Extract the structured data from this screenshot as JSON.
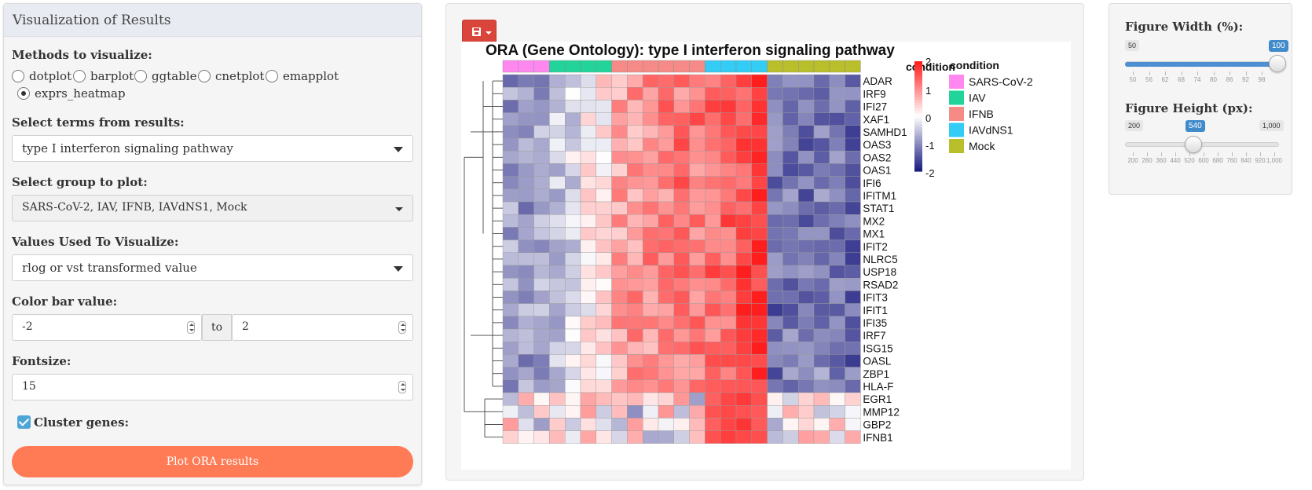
{
  "left_panel": {
    "title": "Visualization of Results",
    "methods_label": "Methods to visualize:",
    "methods": [
      {
        "label": "dotplot",
        "selected": false
      },
      {
        "label": "barplot",
        "selected": false
      },
      {
        "label": "ggtable",
        "selected": false
      },
      {
        "label": "cnetplot",
        "selected": false
      },
      {
        "label": "emapplot",
        "selected": false
      },
      {
        "label": "exprs_heatmap",
        "selected": true
      }
    ],
    "terms_label": "Select terms from results:",
    "terms_value": "type I interferon signaling pathway",
    "group_label": "Select group to plot:",
    "group_value": "SARS-CoV-2, IAV, IFNB, IAVdNS1, Mock",
    "values_label": "Values Used To Visualize:",
    "values_value": "rlog or vst transformed value",
    "colorbar_label": "Color bar value:",
    "colorbar_min": "-2",
    "colorbar_to": "to",
    "colorbar_max": "2",
    "fontsize_label": "Fontsize:",
    "fontsize_value": "15",
    "cluster_label": "Cluster genes:",
    "cluster_checked": true,
    "plot_button": "Plot ORA results"
  },
  "save_button": {
    "icon": "floppy-disk-icon"
  },
  "heatmap": {
    "title": "ORA (Gene Ontology): type I interferon signaling pathway",
    "annotation_label": "condition",
    "legend_title": "condition",
    "legend": [
      {
        "name": "SARS-CoV-2",
        "color": "#ff88f0"
      },
      {
        "name": "IAV",
        "color": "#22d49a"
      },
      {
        "name": "IFNB",
        "color": "#f58a86"
      },
      {
        "name": "IAVdNS1",
        "color": "#33ccf5"
      },
      {
        "name": "Mock",
        "color": "#b8bf2a"
      }
    ],
    "column_conditions": [
      0,
      0,
      0,
      1,
      1,
      1,
      1,
      2,
      2,
      2,
      2,
      2,
      2,
      3,
      3,
      3,
      3,
      4,
      4,
      4,
      4,
      4,
      4
    ],
    "colorbar_ticks": [
      "2",
      "1",
      "0",
      "-1",
      "-2"
    ],
    "genes": [
      "ADAR",
      "IRF9",
      "IFI27",
      "XAF1",
      "SAMHD1",
      "OAS3",
      "OAS2",
      "OAS1",
      "IFI6",
      "IFITM1",
      "STAT1",
      "MX2",
      "MX1",
      "IFIT2",
      "NLRC5",
      "USP18",
      "RSAD2",
      "IFIT3",
      "IFIT1",
      "IFI35",
      "IRF7",
      "ISG15",
      "OASL",
      "ZBP1",
      "HLA-F",
      "EGR1",
      "MMP12",
      "GBP2",
      "IFNB1"
    ]
  },
  "right_panel": {
    "width_label": "Figure Width (%):",
    "width_min": "50",
    "width_max": "100",
    "width_value": "100",
    "width_fraction": 1.0,
    "width_ticks": [
      "50",
      "56",
      "62",
      "68",
      "74",
      "80",
      "86",
      "92",
      "98"
    ],
    "height_label": "Figure Height (px):",
    "height_min": "200",
    "height_max": "1,000",
    "height_value": "540",
    "height_fraction": 0.425,
    "height_ticks": [
      "200",
      "280",
      "360",
      "440",
      "520",
      "600",
      "680",
      "760",
      "840",
      "920",
      "1,000"
    ]
  }
}
